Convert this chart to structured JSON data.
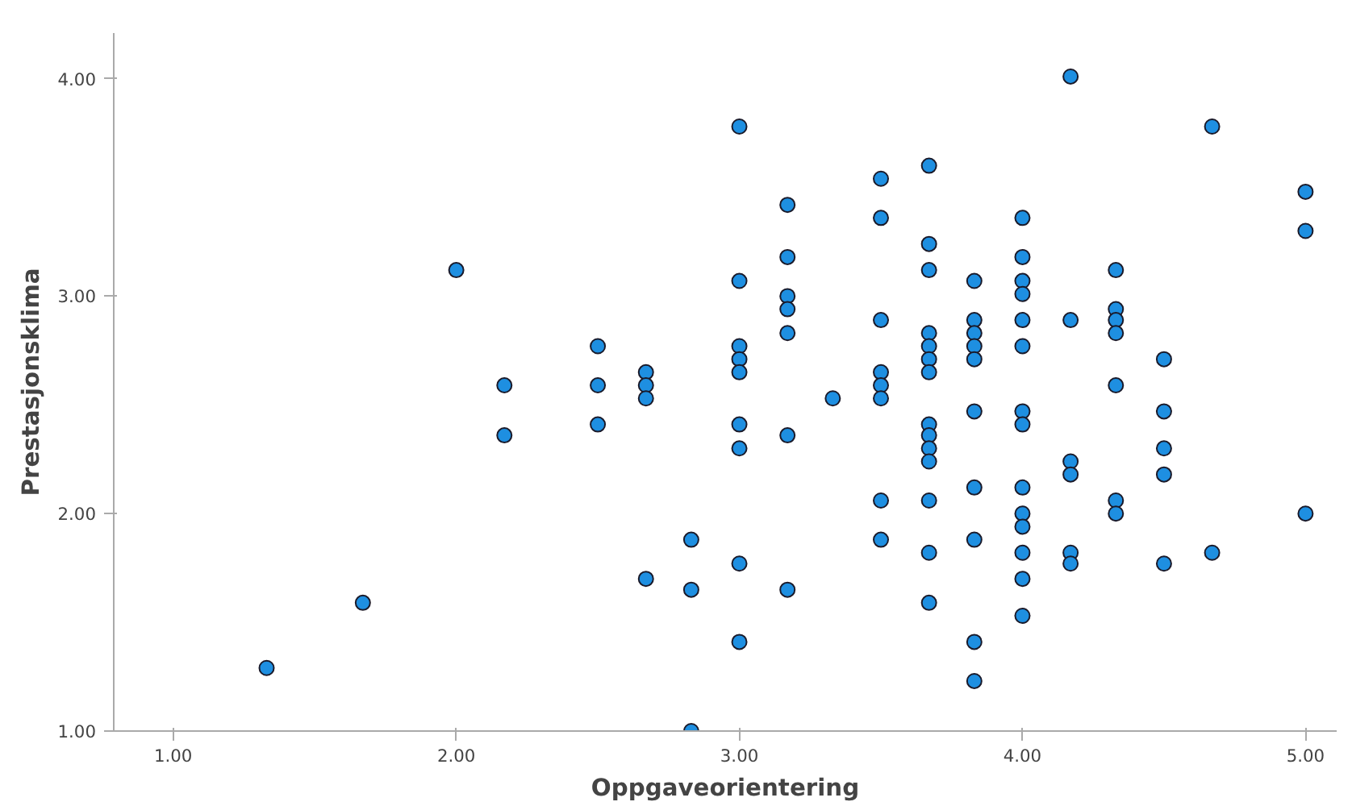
{
  "chart_data": {
    "type": "scatter",
    "xlabel": "Oppgaveorientering",
    "ylabel": "Prestasjonsklima",
    "xlim": [
      0.79,
      5.11
    ],
    "ylim": [
      1.0,
      4.21
    ],
    "xticks": [
      {
        "value": 1,
        "label": "1.00"
      },
      {
        "value": 2,
        "label": "2.00"
      },
      {
        "value": 3,
        "label": "3.00"
      },
      {
        "value": 4,
        "label": "4.00"
      },
      {
        "value": 5,
        "label": "5.00"
      }
    ],
    "yticks": [
      {
        "value": 1,
        "label": "1.00"
      },
      {
        "value": 2,
        "label": "2.00"
      },
      {
        "value": 3,
        "label": "3.00"
      },
      {
        "value": 4,
        "label": "4.00"
      }
    ],
    "grid": false,
    "marker": "circle",
    "series": [
      {
        "color": "#1e8fe1",
        "x": [
          1.33,
          1.67,
          2.0,
          2.17,
          2.17,
          2.5,
          2.5,
          2.5,
          2.67,
          2.67,
          2.67,
          2.67,
          2.83,
          2.83,
          2.83,
          3.0,
          3.0,
          3.0,
          3.0,
          3.0,
          3.0,
          3.0,
          3.0,
          3.0,
          3.17,
          3.17,
          3.17,
          3.17,
          3.17,
          3.17,
          3.17,
          3.33,
          3.5,
          3.5,
          3.5,
          3.5,
          3.5,
          3.5,
          3.5,
          3.5,
          3.67,
          3.67,
          3.67,
          3.67,
          3.67,
          3.67,
          3.67,
          3.67,
          3.67,
          3.67,
          3.67,
          3.67,
          3.67,
          3.67,
          3.83,
          3.83,
          3.83,
          3.83,
          3.83,
          3.83,
          3.83,
          3.83,
          3.83,
          3.83,
          4.0,
          4.0,
          4.0,
          4.0,
          4.0,
          4.0,
          4.0,
          4.0,
          4.0,
          4.0,
          4.0,
          4.0,
          4.0,
          4.0,
          4.17,
          4.17,
          4.17,
          4.17,
          4.17,
          4.17,
          4.33,
          4.33,
          4.33,
          4.33,
          4.33,
          4.33,
          4.33,
          4.5,
          4.5,
          4.5,
          4.5,
          4.5,
          4.67,
          4.67,
          5.0,
          5.0,
          5.0
        ],
        "values": [
          1.29,
          1.59,
          3.12,
          2.59,
          2.36,
          2.77,
          2.59,
          2.41,
          2.65,
          2.59,
          2.53,
          1.7,
          1.88,
          1.65,
          1.0,
          3.78,
          3.07,
          2.77,
          2.71,
          2.65,
          2.41,
          2.3,
          1.77,
          1.41,
          3.42,
          3.18,
          3.0,
          2.94,
          2.83,
          2.36,
          1.65,
          2.53,
          3.54,
          3.36,
          2.89,
          2.65,
          2.59,
          2.53,
          2.06,
          1.88,
          3.6,
          3.24,
          3.12,
          2.83,
          2.77,
          2.71,
          2.65,
          2.41,
          2.36,
          2.3,
          2.24,
          2.06,
          1.82,
          1.59,
          3.07,
          2.89,
          2.83,
          2.77,
          2.71,
          2.47,
          2.12,
          1.88,
          1.41,
          1.23,
          3.36,
          3.18,
          3.07,
          3.01,
          2.89,
          2.77,
          2.47,
          2.41,
          2.12,
          2.0,
          1.94,
          1.82,
          1.7,
          1.53,
          4.01,
          2.89,
          2.24,
          2.18,
          1.82,
          1.77,
          3.12,
          2.94,
          2.89,
          2.83,
          2.59,
          2.06,
          2.0,
          2.71,
          2.47,
          2.3,
          2.18,
          1.77,
          3.78,
          1.82,
          3.48,
          3.3,
          2.0
        ]
      }
    ]
  }
}
